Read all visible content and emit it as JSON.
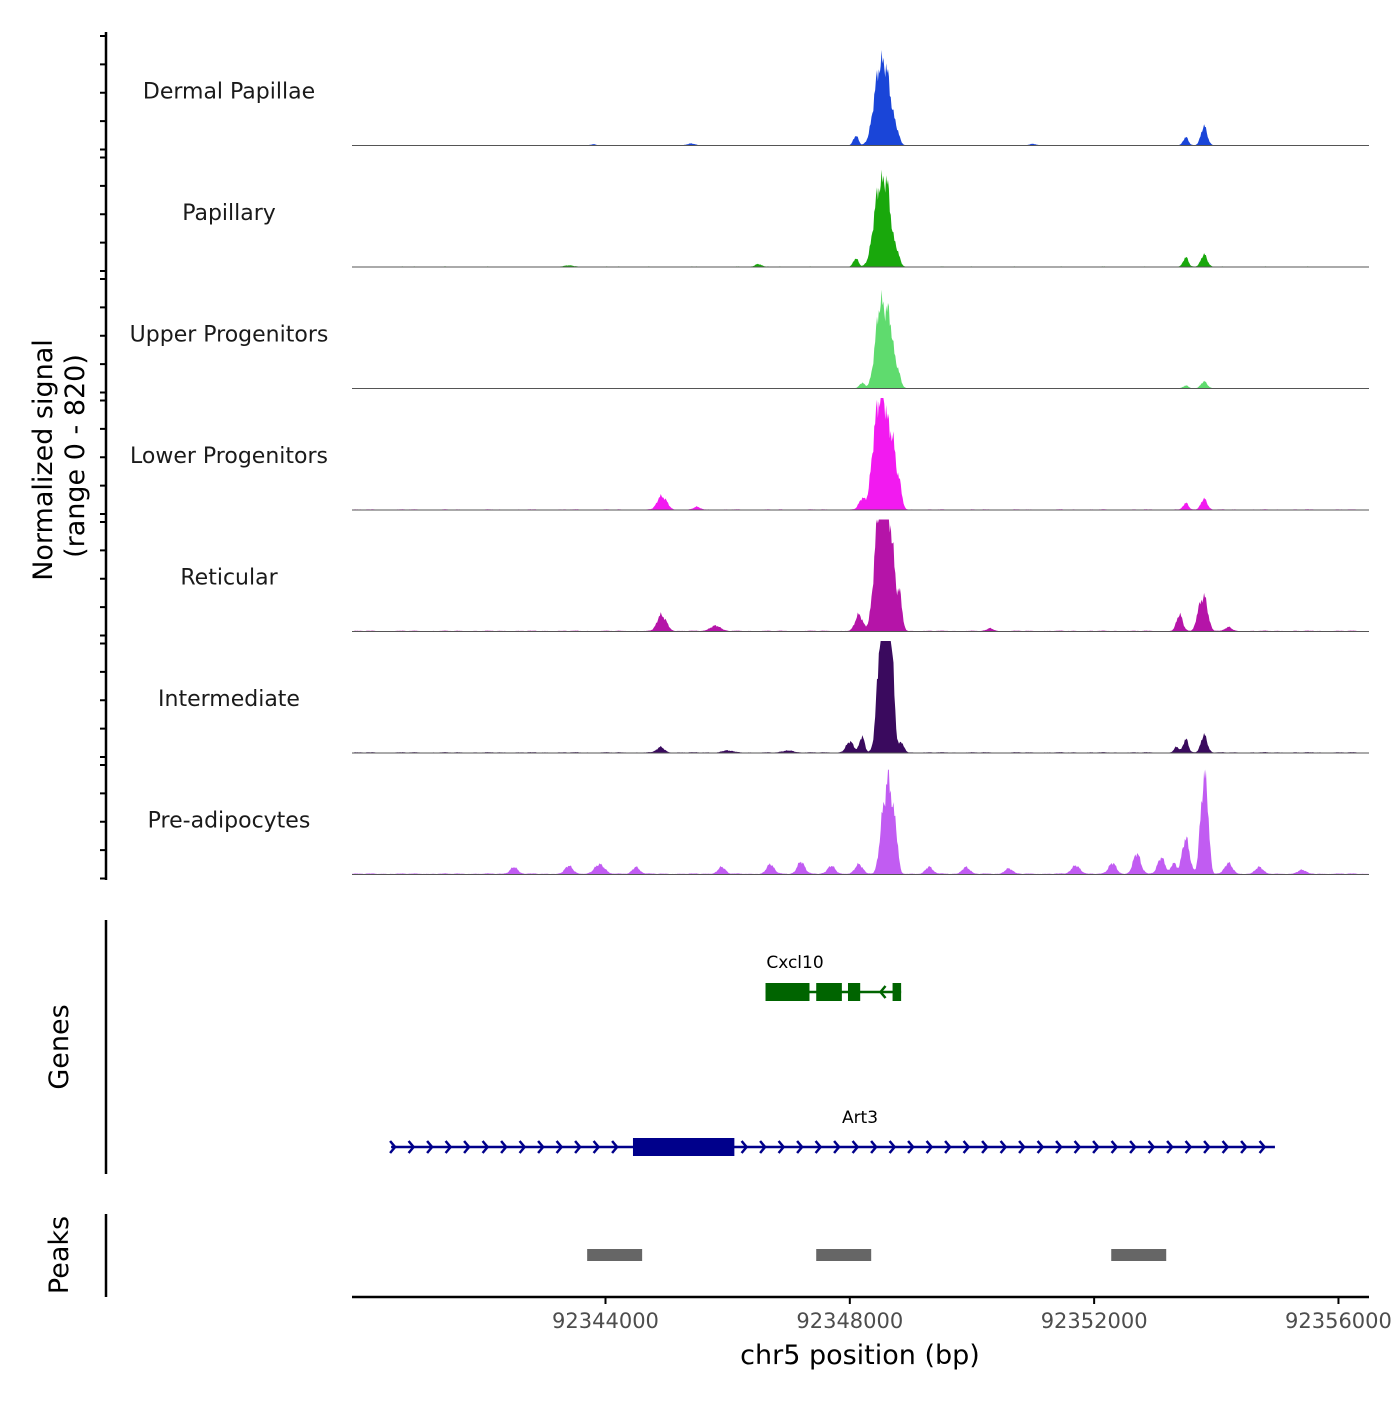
{
  "chart_data": {
    "type": "area",
    "title": "",
    "ylabel": "Normalized signal",
    "ylabel_range": "(range 0 - 820)",
    "ylim": [
      0,
      820
    ],
    "xlabel": "chr5 position (bp)",
    "xlim": [
      92339850,
      92356500
    ],
    "x_ticks": [
      92344000,
      92348000,
      92352000,
      92356000
    ],
    "x_tick_labels": [
      "92344000",
      "92348000",
      "92352000",
      "92356000"
    ],
    "series": [
      {
        "name": "Dermal Papillae",
        "color": "#1a45d8",
        "baseline": 3,
        "peaks": [
          [
            92348100,
            40,
            70
          ],
          [
            92348480,
            90,
            520
          ],
          [
            92348620,
            70,
            360
          ],
          [
            92348760,
            50,
            100
          ],
          [
            92353500,
            40,
            60
          ],
          [
            92353800,
            50,
            140
          ],
          [
            92343800,
            40,
            8
          ],
          [
            92345400,
            60,
            12
          ],
          [
            92351000,
            50,
            10
          ]
        ]
      },
      {
        "name": "Papillary",
        "color": "#19a80c",
        "baseline": 4,
        "peaks": [
          [
            92348100,
            40,
            60
          ],
          [
            92348480,
            90,
            560
          ],
          [
            92348620,
            60,
            420
          ],
          [
            92348760,
            50,
            120
          ],
          [
            92353500,
            40,
            70
          ],
          [
            92353800,
            50,
            90
          ],
          [
            92346500,
            50,
            20
          ],
          [
            92343400,
            60,
            10
          ]
        ]
      },
      {
        "name": "Upper Progenitors",
        "color": "#5fdb6e",
        "baseline": 3,
        "peaks": [
          [
            92348500,
            80,
            600
          ],
          [
            92348650,
            60,
            420
          ],
          [
            92348780,
            50,
            120
          ],
          [
            92348200,
            40,
            40
          ],
          [
            92353800,
            50,
            50
          ],
          [
            92353500,
            40,
            20
          ]
        ]
      },
      {
        "name": "Lower Progenitors",
        "color": "#f21af0",
        "baseline": 5,
        "peaks": [
          [
            92344900,
            60,
            90
          ],
          [
            92345000,
            50,
            40
          ],
          [
            92348420,
            70,
            520
          ],
          [
            92348550,
            70,
            740
          ],
          [
            92348700,
            60,
            460
          ],
          [
            92348820,
            40,
            140
          ],
          [
            92348200,
            50,
            80
          ],
          [
            92353500,
            40,
            50
          ],
          [
            92353800,
            50,
            80
          ],
          [
            92345500,
            50,
            20
          ]
        ]
      },
      {
        "name": "Reticular",
        "color": "#b514a8",
        "baseline": 6,
        "peaks": [
          [
            92344900,
            60,
            110
          ],
          [
            92345000,
            50,
            40
          ],
          [
            92345800,
            80,
            40
          ],
          [
            92348150,
            60,
            120
          ],
          [
            92348450,
            70,
            560
          ],
          [
            92348550,
            70,
            790
          ],
          [
            92348680,
            60,
            600
          ],
          [
            92348820,
            40,
            240
          ],
          [
            92353400,
            50,
            120
          ],
          [
            92353800,
            60,
            250
          ],
          [
            92353700,
            40,
            90
          ],
          [
            92354200,
            50,
            30
          ],
          [
            92350300,
            50,
            20
          ]
        ]
      },
      {
        "name": "Intermediate",
        "color": "#3a0a5e",
        "baseline": 6,
        "peaks": [
          [
            92344900,
            60,
            40
          ],
          [
            92348000,
            60,
            80
          ],
          [
            92348200,
            40,
            120
          ],
          [
            92348500,
            60,
            700
          ],
          [
            92348600,
            60,
            820
          ],
          [
            92348680,
            50,
            560
          ],
          [
            92348850,
            40,
            70
          ],
          [
            92353500,
            40,
            100
          ],
          [
            92353800,
            50,
            130
          ],
          [
            92353350,
            40,
            40
          ],
          [
            92346000,
            80,
            15
          ],
          [
            92347000,
            80,
            15
          ]
        ]
      },
      {
        "name": "Pre-adipocytes",
        "color": "#c15cf2",
        "baseline": 8,
        "peaks": [
          [
            92342500,
            60,
            50
          ],
          [
            92343400,
            60,
            60
          ],
          [
            92343900,
            80,
            70
          ],
          [
            92344500,
            60,
            50
          ],
          [
            92345900,
            60,
            50
          ],
          [
            92346700,
            60,
            70
          ],
          [
            92347200,
            60,
            90
          ],
          [
            92347700,
            60,
            60
          ],
          [
            92348150,
            60,
            70
          ],
          [
            92348550,
            60,
            420
          ],
          [
            92348650,
            50,
            560
          ],
          [
            92348750,
            40,
            300
          ],
          [
            92349300,
            60,
            50
          ],
          [
            92349900,
            60,
            50
          ],
          [
            92350600,
            60,
            40
          ],
          [
            92351700,
            70,
            60
          ],
          [
            92352300,
            60,
            80
          ],
          [
            92352700,
            60,
            150
          ],
          [
            92353100,
            60,
            120
          ],
          [
            92353500,
            60,
            260
          ],
          [
            92353780,
            50,
            560
          ],
          [
            92353850,
            40,
            380
          ],
          [
            92353300,
            40,
            80
          ],
          [
            92354200,
            60,
            80
          ],
          [
            92354700,
            60,
            50
          ],
          [
            92355400,
            60,
            30
          ]
        ]
      }
    ],
    "genes": [
      {
        "name": "Cxcl10",
        "strand": "-",
        "color": "#006400",
        "start": 92346620,
        "end": 92348840,
        "exons": [
          [
            92346620,
            92347340
          ],
          [
            92347450,
            92347870
          ],
          [
            92347970,
            92348170
          ],
          [
            92348700,
            92348840
          ]
        ]
      },
      {
        "name": "Art3",
        "strand": "+",
        "color": "#00008b",
        "start": 92340490,
        "end": 92354960,
        "exons": [
          [
            92344450,
            92346110
          ]
        ]
      }
    ],
    "genes_label": "Genes",
    "peaks_label": "Peaks",
    "peaks_color": "#666666",
    "peak_regions": [
      [
        92343700,
        92344600
      ],
      [
        92347450,
        92348350
      ],
      [
        92352280,
        92353180
      ]
    ]
  }
}
